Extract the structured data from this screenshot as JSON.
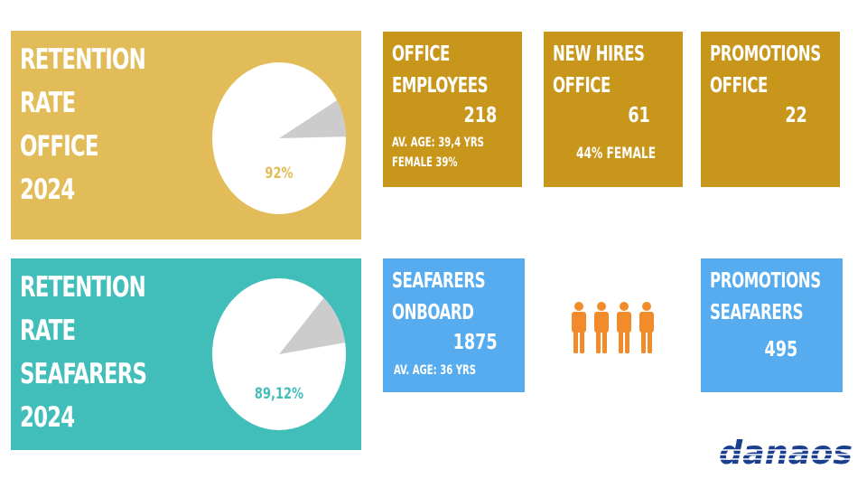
{
  "retention_office": {
    "title_lines": [
      "RETENTION",
      "RATE",
      "OFFICE",
      "2024"
    ],
    "pie_label": "92%",
    "value_percent": 92
  },
  "retention_seafarers": {
    "title_lines": [
      "RETENTION",
      "RATE",
      "SEAFARERS",
      "2024"
    ],
    "pie_label": "89,12%",
    "value_percent": 89.12
  },
  "office_employees": {
    "title_lines": [
      "OFFICE",
      "EMPLOYEES"
    ],
    "value": "218",
    "details": [
      "AV. AGE: 39,4 YRS",
      "FEMALE 39%"
    ]
  },
  "new_hires_office": {
    "title_lines": [
      "NEW HIRES",
      "OFFICE"
    ],
    "value": "61",
    "detail": "44% FEMALE"
  },
  "promotions_office": {
    "title_lines": [
      "PROMOTIONS",
      "OFFICE"
    ],
    "value": "22"
  },
  "seafarers_onboard": {
    "title_lines": [
      "SEAFARERS",
      "ONBOARD"
    ],
    "value": "1875",
    "detail": "AV. AGE: 36 YRS"
  },
  "promotions_seafarers": {
    "title_lines": [
      "PROMOTIONS",
      "SEAFARERS"
    ],
    "value": "495"
  },
  "logo_text": "danaos",
  "icons": {
    "people": "people-icon"
  },
  "colors": {
    "office_bg": "#e2bc58",
    "seafarers_bg": "#41beb9",
    "gold_box": "#c8961b",
    "blue_box": "#56acef",
    "people_icon": "#f28c2b",
    "logo": "#1b3f8f",
    "pie_slice": "#cccccc"
  }
}
